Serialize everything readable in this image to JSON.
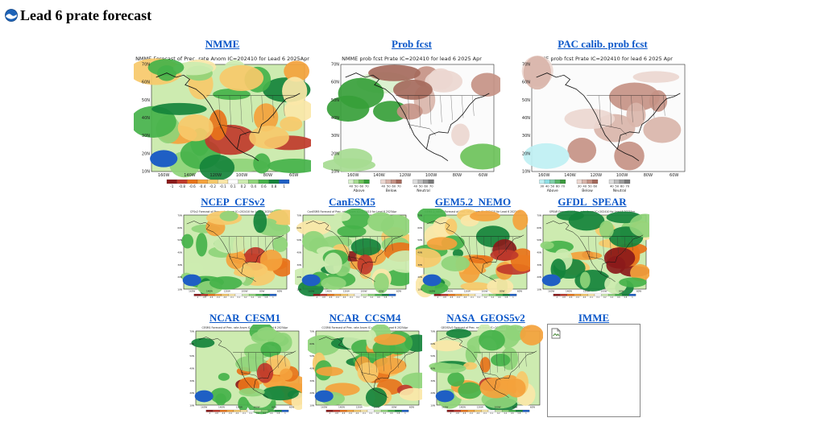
{
  "page": {
    "title": "Lead 6 prate forecast",
    "logo_icon": "noaa-logo-icon"
  },
  "top_row": [
    {
      "link": "NMME",
      "caption": "NMME Forecast of Prec. rate Anom IC=202410 for Lead 6 2025Apr",
      "style": "anom",
      "seed": 3
    },
    {
      "link": "Prob fcst",
      "caption": "NMME prob fcst Prate IC=202410 for lead 6 2025 Apr",
      "style": "prob",
      "seed": 7
    },
    {
      "link": "PAC calib. prob fcst",
      "caption": "NMME prob fcst Prate IC=202410 for lead 6 2025 Apr",
      "style": "pac",
      "seed": 11
    }
  ],
  "mid_row": [
    {
      "link": "NCEP_CFSv2",
      "caption": "CFSv2 Forecast of Prec. rate Anom IC=202410 for Lead 6 2025Apr",
      "style": "anom",
      "seed": 17
    },
    {
      "link": "CanESM5",
      "caption": "CanESM5 Forecast of Prec. rate Anom IC=202410 for Lead 6 2025Apr",
      "style": "anom",
      "seed": 23
    },
    {
      "link": "GEM5.2_NEMO",
      "caption": "GEM5.2_NEMO Forecast of Prec. rate Anom IC=202410 for Lead 6 2025Apr",
      "style": "anom",
      "seed": 29
    },
    {
      "link": "GFDL_SPEAR",
      "caption": "SPEAR Forecast of Prec. rate Anom IC=202410 for Lead 6 2025Apr",
      "style": "anom",
      "seed": 31
    }
  ],
  "bottom_row": [
    {
      "link": "NCAR_CESM1",
      "caption": "CESM1 Forecast of Prec. rate Anom IC=202410 for Lead 6 2025Apr",
      "style": "anom",
      "seed": 37
    },
    {
      "link": "NCAR_CCSM4",
      "caption": "CCSM4 Forecast of Prec. rate Anom IC=202410 for Lead 6 2025Apr",
      "style": "anom",
      "seed": 41
    },
    {
      "link": "NASA_GEOS5v2",
      "caption": "GEOS5v2 Forecast of Prec. rate Anom IC=202410 for Lead 6 2025Apr",
      "style": "anom",
      "seed": 43
    },
    {
      "link": "IMME",
      "broken_image_icon": "broken-image-icon"
    }
  ],
  "axis": {
    "lat_labels": [
      "70N",
      "60N",
      "50N",
      "40N",
      "30N",
      "20N",
      "10N"
    ],
    "lon_labels": [
      "160W",
      "140W",
      "120W",
      "100W",
      "80W",
      "60W"
    ]
  },
  "legends": {
    "anom": [
      "-1",
      "-0.8",
      "-0.6",
      "-0.4",
      "-0.2",
      "-0.1",
      "0.1",
      "0.2",
      "0.4",
      "0.6",
      "0.8",
      "1"
    ],
    "prob": {
      "above": "Above",
      "below": "Below",
      "neutral": "Neutral",
      "above_values": [
        "40",
        "50",
        "60",
        "70"
      ],
      "below_values": [
        "40",
        "50",
        "60",
        "70"
      ],
      "neutral_values": [
        "40",
        "50",
        "60",
        "70"
      ]
    },
    "pac": {
      "above": "Above",
      "below": "Below",
      "neutral": "Neutral",
      "above_values": [
        "30",
        "40",
        "50",
        "60",
        "70"
      ],
      "below_values": [
        "30",
        "40",
        "50",
        "60",
        "70"
      ],
      "neutral_values": [
        "40",
        "50",
        "60",
        "70"
      ]
    }
  },
  "colors": {
    "link": "#0b57c9",
    "anom": [
      "#8b1a1a",
      "#c0392b",
      "#e8731a",
      "#f4a23c",
      "#f7c96a",
      "#fbe7a8",
      "#ffffff",
      "#cdebb0",
      "#8fd47a",
      "#45b24a",
      "#15833b",
      "#1f5fc4"
    ],
    "prob_above": [
      "#d8f0cc",
      "#a6db91",
      "#6cc25a",
      "#37a03a"
    ],
    "prob_below": [
      "#ecd7d0",
      "#d9b5aa",
      "#c59385",
      "#a56a5c"
    ],
    "neutral": [
      "#dcdcdc",
      "#bdbdbd",
      "#9c9c9c",
      "#7a7a7a"
    ],
    "pac_above": [
      "#bff0f3",
      "#8fe0e6",
      "#7fd0a8",
      "#5cb86a",
      "#3b9a3e"
    ],
    "land": "#fbfbfb",
    "coast": "#111111"
  }
}
